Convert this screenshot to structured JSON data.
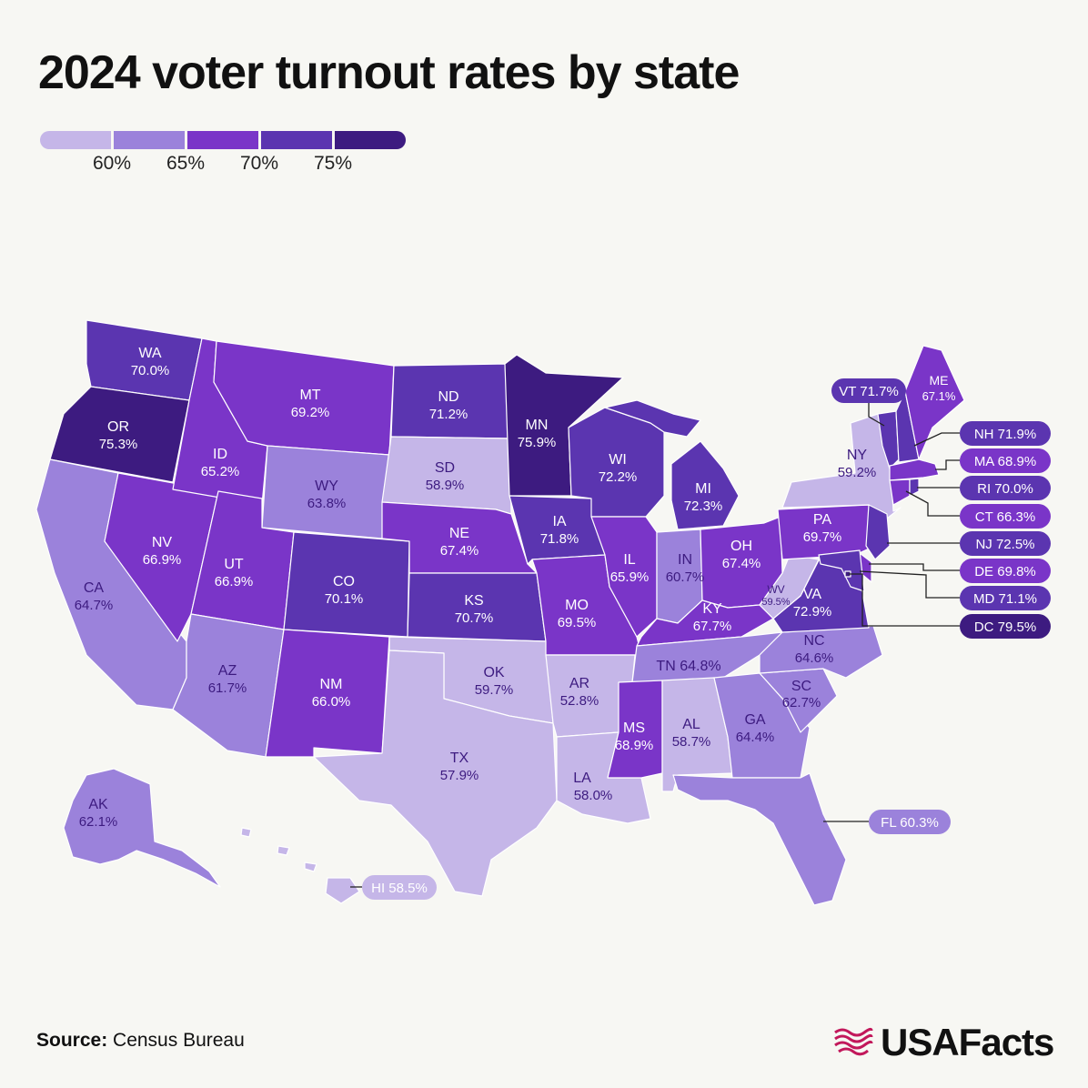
{
  "title": "2024 voter turnout rates by state",
  "legend": {
    "colors": [
      "#c5b6e8",
      "#9b82db",
      "#7a35c8",
      "#5b35b0",
      "#3d1b80"
    ],
    "ticks": [
      "60%",
      "65%",
      "70%",
      "75%"
    ]
  },
  "colors": {
    "background": "#f7f7f3",
    "text_dark": "#3d1b80",
    "text_light": "#ffffff"
  },
  "states": {
    "WA": {
      "label": "WA",
      "value": "70.0%"
    },
    "OR": {
      "label": "OR",
      "value": "75.3%"
    },
    "CA": {
      "label": "CA",
      "value": "64.7%"
    },
    "NV": {
      "label": "NV",
      "value": "66.9%"
    },
    "ID": {
      "label": "ID",
      "value": "65.2%"
    },
    "MT": {
      "label": "MT",
      "value": "69.2%"
    },
    "WY": {
      "label": "WY",
      "value": "63.8%"
    },
    "UT": {
      "label": "UT",
      "value": "66.9%"
    },
    "AZ": {
      "label": "AZ",
      "value": "61.7%"
    },
    "CO": {
      "label": "CO",
      "value": "70.1%"
    },
    "NM": {
      "label": "NM",
      "value": "66.0%"
    },
    "ND": {
      "label": "ND",
      "value": "71.2%"
    },
    "SD": {
      "label": "SD",
      "value": "58.9%"
    },
    "NE": {
      "label": "NE",
      "value": "67.4%"
    },
    "KS": {
      "label": "KS",
      "value": "70.7%"
    },
    "OK": {
      "label": "OK",
      "value": "59.7%"
    },
    "TX": {
      "label": "TX",
      "value": "57.9%"
    },
    "MN": {
      "label": "MN",
      "value": "75.9%"
    },
    "IA": {
      "label": "IA",
      "value": "71.8%"
    },
    "MO": {
      "label": "MO",
      "value": "69.5%"
    },
    "AR": {
      "label": "AR",
      "value": "52.8%"
    },
    "LA": {
      "label": "LA",
      "value": "58.0%"
    },
    "WI": {
      "label": "WI",
      "value": "72.2%"
    },
    "IL": {
      "label": "IL",
      "value": "65.9%"
    },
    "MI": {
      "label": "MI",
      "value": "72.3%"
    },
    "IN": {
      "label": "IN",
      "value": "60.7%"
    },
    "OH": {
      "label": "OH",
      "value": "67.4%"
    },
    "KY": {
      "label": "KY",
      "value": "67.7%"
    },
    "TN": {
      "label": "TN",
      "value": "64.8%"
    },
    "MS": {
      "label": "MS",
      "value": "68.9%"
    },
    "AL": {
      "label": "AL",
      "value": "58.7%"
    },
    "GA": {
      "label": "GA",
      "value": "64.4%"
    },
    "FL": {
      "label": "FL",
      "value": "60.3%"
    },
    "SC": {
      "label": "SC",
      "value": "62.7%"
    },
    "NC": {
      "label": "NC",
      "value": "64.6%"
    },
    "VA": {
      "label": "VA",
      "value": "72.9%"
    },
    "WV": {
      "label": "WV",
      "value": "59.5%"
    },
    "PA": {
      "label": "PA",
      "value": "69.7%"
    },
    "NY": {
      "label": "NY",
      "value": "59.2%"
    },
    "ME": {
      "label": "ME",
      "value": "67.1%"
    },
    "VT": {
      "label": "VT",
      "value": "71.7%"
    },
    "NH": {
      "label": "NH",
      "value": "71.9%"
    },
    "MA": {
      "label": "MA",
      "value": "68.9%"
    },
    "RI": {
      "label": "RI",
      "value": "70.0%"
    },
    "CT": {
      "label": "CT",
      "value": "66.3%"
    },
    "NJ": {
      "label": "NJ",
      "value": "72.5%"
    },
    "DE": {
      "label": "DE",
      "value": "69.8%"
    },
    "MD": {
      "label": "MD",
      "value": "71.1%"
    },
    "DC": {
      "label": "DC",
      "value": "79.5%"
    },
    "AK": {
      "label": "AK",
      "value": "62.1%"
    },
    "HI": {
      "label": "HI",
      "value": "58.5%"
    }
  },
  "callouts": {
    "VT": "VT 71.7%",
    "NH": "NH 71.9%",
    "MA": "MA 68.9%",
    "RI": "RI 70.0%",
    "CT": "CT 66.3%",
    "NJ": "NJ 72.5%",
    "DE": "DE 69.8%",
    "MD": "MD 71.1%",
    "DC": "DC 79.5%",
    "TN": "TN 64.8%",
    "FL": "FL 60.3%",
    "HI": "HI 58.5%"
  },
  "source": {
    "label": "Source:",
    "text": "Census Bureau"
  },
  "brand": {
    "name": "USAFacts"
  }
}
